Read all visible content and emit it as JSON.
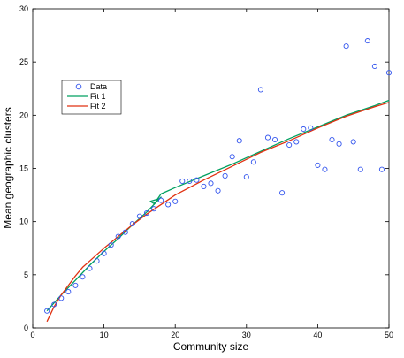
{
  "chart_data": {
    "type": "scatter",
    "xlabel": "Community size",
    "ylabel": "Mean geographic clusters",
    "xlim": [
      0,
      50
    ],
    "ylim": [
      0,
      30
    ],
    "xticks": [
      0,
      10,
      20,
      30,
      40,
      50
    ],
    "yticks": [
      0,
      5,
      10,
      15,
      20,
      25,
      30
    ],
    "grid": false,
    "legend_position": "upper-left",
    "colors": {
      "data": "#3355ee",
      "fit1": "#00a060",
      "fit2": "#e03010"
    },
    "series": [
      {
        "name": "Data",
        "kind": "markers",
        "x": [
          2,
          3,
          4,
          5,
          6,
          7,
          8,
          9,
          10,
          11,
          12,
          13,
          14,
          15,
          16,
          17,
          18,
          19,
          20,
          21,
          22,
          23,
          24,
          25,
          26,
          27,
          28,
          29,
          30,
          31,
          32,
          33,
          34,
          35,
          36,
          37,
          38,
          39,
          40,
          41,
          42,
          43,
          44,
          45,
          46,
          47,
          48,
          49,
          50
        ],
        "y": [
          1.6,
          2.2,
          2.8,
          3.4,
          4.0,
          4.8,
          5.6,
          6.3,
          7.0,
          7.8,
          8.6,
          9.0,
          9.8,
          10.5,
          10.8,
          11.2,
          12.0,
          11.6,
          11.9,
          13.8,
          13.8,
          13.9,
          13.3,
          13.6,
          12.9,
          14.3,
          16.1,
          17.6,
          14.2,
          15.6,
          22.4,
          17.9,
          17.7,
          12.7,
          17.2,
          17.5,
          18.7,
          18.8,
          15.3,
          14.9,
          17.7,
          17.3,
          26.5,
          17.5,
          14.9,
          27.0,
          24.6,
          14.9,
          24.0
        ]
      },
      {
        "name": "Fit 1",
        "kind": "line",
        "x": [
          2,
          4,
          6,
          8,
          10,
          12,
          14,
          16,
          18,
          17,
          16.5,
          17.5,
          18,
          20,
          24,
          28,
          32,
          36,
          40,
          44,
          48,
          50
        ],
        "y": [
          1.6,
          3.1,
          4.5,
          5.9,
          7.2,
          8.4,
          9.7,
          10.9,
          12.3,
          11.7,
          11.9,
          12.1,
          12.6,
          13.2,
          14.3,
          15.4,
          16.6,
          17.8,
          18.9,
          20.0,
          20.9,
          21.4
        ]
      },
      {
        "name": "Fit 2",
        "kind": "line",
        "x": [
          2,
          3,
          4,
          5,
          6,
          7,
          8,
          10,
          12,
          14,
          16,
          18,
          20,
          24,
          28,
          32,
          36,
          40,
          44,
          48,
          50
        ],
        "y": [
          0.6,
          2.0,
          3.1,
          4.0,
          4.9,
          5.7,
          6.3,
          7.5,
          8.6,
          9.7,
          10.7,
          11.6,
          12.5,
          13.9,
          15.2,
          16.5,
          17.6,
          18.8,
          19.9,
          20.8,
          21.2
        ]
      }
    ]
  }
}
